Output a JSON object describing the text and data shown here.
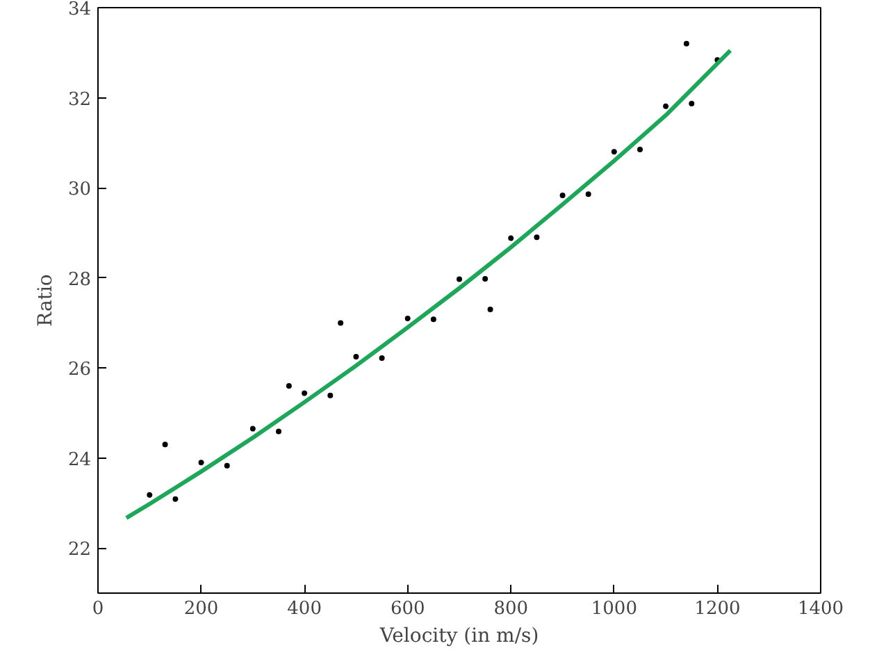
{
  "chart_data": {
    "type": "scatter",
    "xlabel": "Velocity (in m/s)",
    "ylabel": "Ratio",
    "xlim": [
      0,
      1400
    ],
    "ylim": [
      21,
      34
    ],
    "xticks": [
      0,
      200,
      400,
      600,
      800,
      1000,
      1200,
      1400
    ],
    "yticks": [
      22,
      24,
      26,
      28,
      30,
      32,
      34
    ],
    "grid": false,
    "marker": "circle",
    "series": [
      {
        "color": "#000000",
        "x": [
          100,
          130,
          150,
          200,
          250,
          300,
          350,
          370,
          400,
          450,
          470,
          500,
          550,
          600,
          650,
          700,
          750,
          760,
          800,
          850,
          900,
          950,
          1000,
          1050,
          1100,
          1140,
          1150,
          1200
        ],
        "values": [
          23.18,
          24.3,
          23.09,
          23.9,
          23.83,
          24.65,
          24.59,
          25.6,
          25.44,
          25.39,
          27.0,
          26.25,
          26.22,
          27.1,
          27.08,
          27.97,
          27.98,
          27.3,
          28.88,
          28.9,
          29.83,
          29.86,
          30.8,
          30.85,
          31.81,
          33.2,
          31.87,
          32.84
        ]
      },
      {
        "type": "line",
        "color": "#1fa65a",
        "marker": "none",
        "x": [
          55,
          100,
          200,
          300,
          400,
          500,
          600,
          700,
          800,
          900,
          1000,
          1100,
          1225
        ],
        "values": [
          22.67,
          22.98,
          23.7,
          24.45,
          25.24,
          26.05,
          26.9,
          27.77,
          28.68,
          29.63,
          30.6,
          31.61,
          33.05
        ]
      }
    ]
  }
}
